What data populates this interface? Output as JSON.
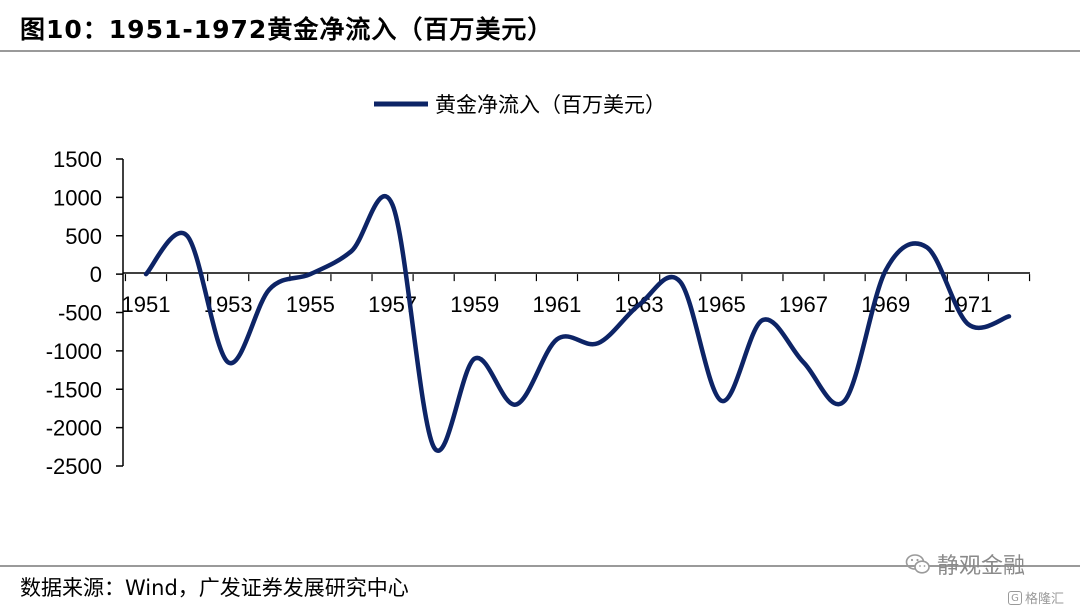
{
  "header": {
    "title": "图10：1951-1972黄金净流入（百万美元）"
  },
  "footer": {
    "source": "数据来源：Wind，广发证券发展研究中心"
  },
  "watermark": {
    "text": "静观金融",
    "icon": "wechat-icon"
  },
  "logo": {
    "text": "格隆汇",
    "icon": "gelonghui-logo-icon"
  },
  "chart_data": {
    "type": "line",
    "title": "",
    "xlabel": "",
    "ylabel": "",
    "ylim": [
      -2500,
      1500
    ],
    "yticks": [
      "1500",
      "1000",
      "500",
      "0",
      "-500",
      "-1000",
      "-1500",
      "-2000",
      "-2500"
    ],
    "xticks": [
      "1951",
      "1953",
      "1955",
      "1957",
      "1959",
      "1961",
      "1963",
      "1965",
      "1967",
      "1969",
      "1971"
    ],
    "legend_position": "top-center",
    "grid": false,
    "series": [
      {
        "name": "黄金净流入（百万美元）",
        "color": "#0d2466",
        "x": [
          1951,
          1952,
          1953,
          1954,
          1955,
          1956,
          1957,
          1958,
          1959,
          1960,
          1961,
          1962,
          1963,
          1964,
          1965,
          1966,
          1967,
          1968,
          1969,
          1970,
          1971,
          1972
        ],
        "values": [
          0,
          500,
          -1150,
          -200,
          0,
          300,
          900,
          -2250,
          -1100,
          -1700,
          -850,
          -900,
          -400,
          -100,
          -1650,
          -600,
          -1150,
          -1650,
          50,
          350,
          -650,
          -550
        ]
      }
    ]
  }
}
